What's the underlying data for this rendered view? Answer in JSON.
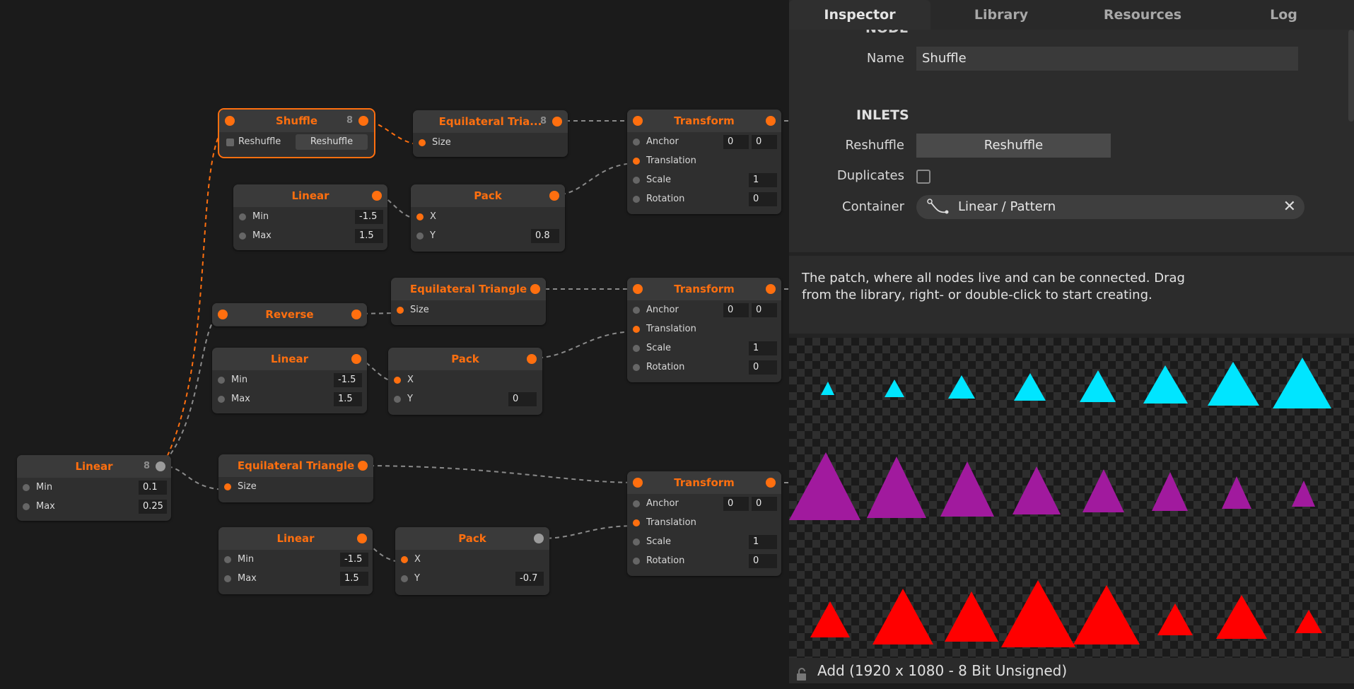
{
  "canvas": {
    "nodes": {
      "shuffle": {
        "title": "Shuffle",
        "count": "8",
        "checkbox_label": "Reshuffle",
        "button": "Reshuffle"
      },
      "tri1": {
        "title": "Equilateral Tria...",
        "count": "8",
        "size": "Size"
      },
      "transform1": {
        "title": "Transform",
        "anchor": "Anchor",
        "anchor_x": "0",
        "anchor_y": "0",
        "translation": "Translation",
        "scale": "Scale",
        "scale_val": "1",
        "rotation": "Rotation",
        "rotation_val": "0"
      },
      "linear1": {
        "title": "Linear",
        "min": "Min",
        "min_val": "-1.5",
        "max": "Max",
        "max_val": "1.5"
      },
      "pack1": {
        "title": "Pack",
        "x": "X",
        "y": "Y",
        "y_val": "0.8"
      },
      "tri2": {
        "title": "Equilateral Triangle",
        "size": "Size"
      },
      "transform2": {
        "title": "Transform",
        "anchor": "Anchor",
        "anchor_x": "0",
        "anchor_y": "0",
        "translation": "Translation",
        "scale": "Scale",
        "scale_val": "1",
        "rotation": "Rotation",
        "rotation_val": "0"
      },
      "reverse": {
        "title": "Reverse"
      },
      "linear2": {
        "title": "Linear",
        "min": "Min",
        "min_val": "-1.5",
        "max": "Max",
        "max_val": "1.5"
      },
      "pack2": {
        "title": "Pack",
        "x": "X",
        "y": "Y",
        "y_val": "0"
      },
      "linear_src": {
        "title": "Linear",
        "count": "8",
        "min": "Min",
        "min_val": "0.1",
        "max": "Max",
        "max_val": "0.25"
      },
      "tri3": {
        "title": "Equilateral Triangle",
        "size": "Size"
      },
      "transform3": {
        "title": "Transform",
        "anchor": "Anchor",
        "anchor_x": "0",
        "anchor_y": "0",
        "translation": "Translation",
        "scale": "Scale",
        "scale_val": "1",
        "rotation": "Rotation",
        "rotation_val": "0"
      },
      "linear3": {
        "title": "Linear",
        "min": "Min",
        "min_val": "-1.5",
        "max": "Max",
        "max_val": "1.5"
      },
      "pack3": {
        "title": "Pack",
        "x": "X",
        "y": "Y",
        "y_val": "-0.7"
      }
    }
  },
  "panel": {
    "tabs": [
      "Inspector",
      "Library",
      "Resources",
      "Log"
    ],
    "inspector": {
      "section_node": "NODE",
      "name_label": "Name",
      "name_value": "Shuffle",
      "section_inlets": "INLETS",
      "reshuffle_label": "Reshuffle",
      "reshuffle_button": "Reshuffle",
      "duplicates_label": "Duplicates",
      "container_label": "Container",
      "container_value": "Linear / Pattern"
    },
    "description": "The patch, where all nodes live and can be connected. Drag from the library, right- or double-click to start creating.",
    "status": "Add (1920 x 1080 - 8 Bit Unsigned)"
  },
  "colors": {
    "accent": "#ff6f0f",
    "cyan": "#00e5ff",
    "purple": "#a11a9e",
    "red": "#ff0000"
  }
}
